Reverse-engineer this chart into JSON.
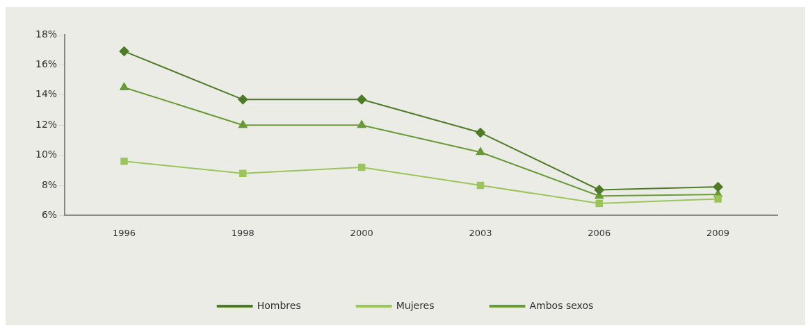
{
  "chart_data": {
    "type": "line",
    "categories": [
      "1996",
      "1998",
      "2000",
      "2003",
      "2006",
      "2009"
    ],
    "series": [
      {
        "name": "Hombres",
        "color": "#4f7a28",
        "marker": "diamond",
        "values": [
          16.9,
          13.7,
          13.7,
          11.5,
          7.7,
          7.9
        ]
      },
      {
        "name": "Mujeres",
        "color": "#9bc45a",
        "marker": "square",
        "values": [
          9.6,
          8.8,
          9.2,
          8.0,
          6.8,
          7.1
        ]
      },
      {
        "name": "Ambos sexos",
        "color": "#6a9a38",
        "marker": "triangle",
        "values": [
          14.5,
          12.0,
          12.0,
          10.2,
          7.3,
          7.4
        ]
      }
    ],
    "ylim": [
      6,
      18
    ],
    "yticks": [
      {
        "value": 6,
        "label": "6%"
      },
      {
        "value": 8,
        "label": "8%"
      },
      {
        "value": 10,
        "label": "10%"
      },
      {
        "value": 12,
        "label": "12%"
      },
      {
        "value": 14,
        "label": "14%"
      },
      {
        "value": 16,
        "label": "16%"
      },
      {
        "value": 18,
        "label": "18%"
      }
    ],
    "grid": false,
    "legend": "bottom"
  }
}
